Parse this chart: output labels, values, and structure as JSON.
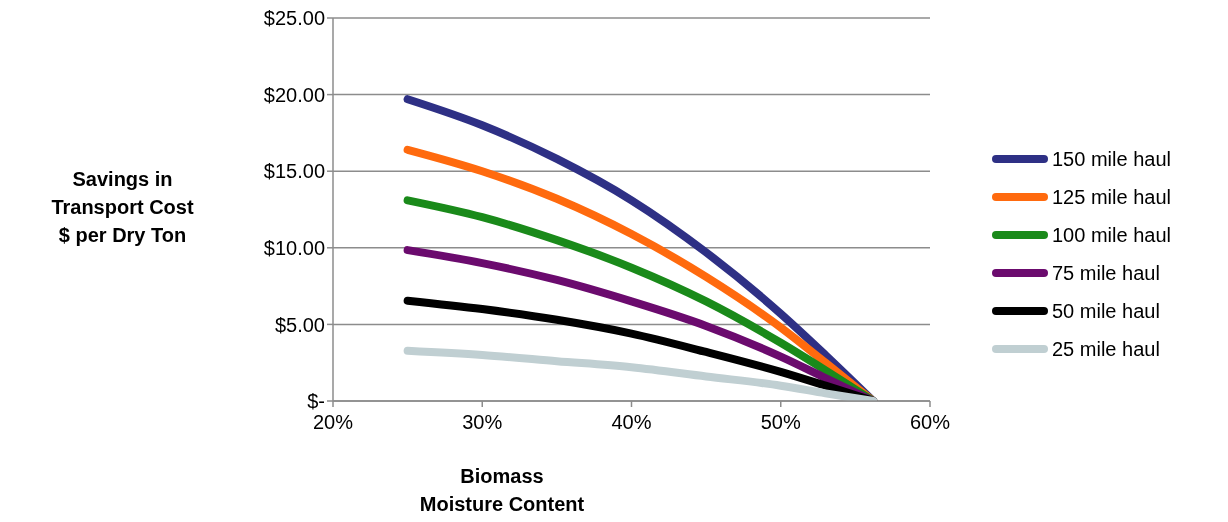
{
  "chart_data": {
    "type": "line",
    "xlabel": "Biomass\nMoisture Content",
    "ylabel": "Savings in\nTransport Cost\n$ per Dry Ton",
    "x": [
      25,
      30,
      35,
      40,
      45,
      50,
      53,
      56.2
    ],
    "series": [
      {
        "name": "150 mile haul",
        "color": "#2e3085",
        "values": [
          19.7,
          18.0,
          15.8,
          13.1,
          9.7,
          5.7,
          3.0,
          0
        ]
      },
      {
        "name": "125 mile haul",
        "color": "#ff6a0e",
        "values": [
          16.4,
          15.0,
          13.2,
          10.9,
          8.1,
          4.8,
          2.5,
          0
        ]
      },
      {
        "name": "100 mile haul",
        "color": "#1a8a1a",
        "values": [
          13.1,
          12.0,
          10.5,
          8.7,
          6.5,
          3.8,
          2.0,
          0
        ]
      },
      {
        "name": "75 mile haul",
        "color": "#6b0b6e",
        "values": [
          9.85,
          9.0,
          7.9,
          6.5,
          4.9,
          2.9,
          1.5,
          0
        ]
      },
      {
        "name": "50 mile haul",
        "color": "#000000",
        "values": [
          6.55,
          6.0,
          5.3,
          4.4,
          3.2,
          1.9,
          1.0,
          0
        ]
      },
      {
        "name": "25 mile haul",
        "color": "#c0cfd2",
        "values": [
          3.28,
          3.0,
          2.6,
          2.2,
          1.6,
          1.0,
          0.5,
          0
        ]
      }
    ],
    "xlim": [
      20,
      60
    ],
    "xticks": [
      {
        "value": 20,
        "label": "20%"
      },
      {
        "value": 30,
        "label": "30%"
      },
      {
        "value": 40,
        "label": "40%"
      },
      {
        "value": 50,
        "label": "50%"
      },
      {
        "value": 60,
        "label": "60%"
      }
    ],
    "ylim": [
      0,
      25
    ],
    "yticks": [
      {
        "value": 0,
        "label": "$-"
      },
      {
        "value": 5,
        "label": "$5.00"
      },
      {
        "value": 10,
        "label": "$10.00"
      },
      {
        "value": 15,
        "label": "$15.00"
      },
      {
        "value": 20,
        "label": "$20.00"
      },
      {
        "value": 25,
        "label": "$25.00"
      }
    ],
    "grid": "y",
    "legend": "right",
    "marker": "none",
    "line_style": "solid"
  }
}
